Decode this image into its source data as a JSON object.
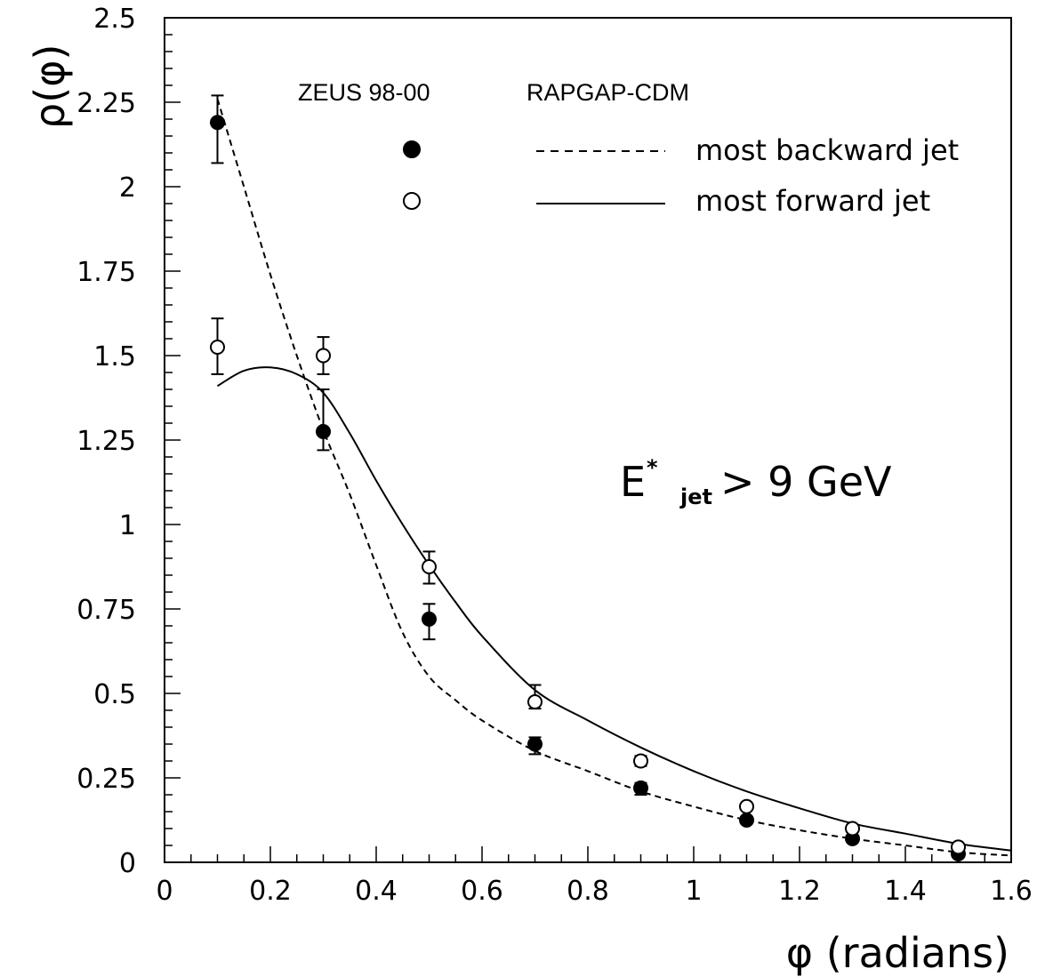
{
  "chart_data": {
    "type": "scatter",
    "title": "",
    "xlabel": "φ (radians)",
    "ylabel": "ρ(φ)",
    "xlim": [
      0,
      1.6
    ],
    "ylim": [
      0,
      2.5
    ],
    "xticks": [
      "0",
      "0.2",
      "0.4",
      "0.6",
      "0.8",
      "1",
      "1.2",
      "1.4",
      "1.6"
    ],
    "yticks": [
      "0",
      "0.25",
      "0.5",
      "0.75",
      "1",
      "1.25",
      "1.5",
      "1.75",
      "2",
      "2.25",
      "2.5"
    ],
    "grid": false,
    "legend": {
      "placement": "top-right",
      "header_data": "ZEUS 98-00",
      "header_model": "RAPGAP-CDM",
      "entries": [
        "most backward jet",
        "most forward jet"
      ]
    },
    "annotation": {
      "main": "E",
      "sup": "*",
      "sub": "jet",
      "rest": " > 9 GeV"
    },
    "series": [
      {
        "name": "most backward jet",
        "kind": "data",
        "marker": "filled-circle",
        "points": [
          {
            "x": 0.1,
            "y": 2.19,
            "ylo": 2.07,
            "yhi": 2.27
          },
          {
            "x": 0.3,
            "y": 1.275,
            "ylo": 1.22,
            "yhi": 1.4
          },
          {
            "x": 0.5,
            "y": 0.72,
            "ylo": 0.66,
            "yhi": 0.765
          },
          {
            "x": 0.7,
            "y": 0.35,
            "ylo": 0.32,
            "yhi": 0.37
          },
          {
            "x": 0.9,
            "y": 0.22,
            "ylo": 0.2,
            "yhi": 0.235
          },
          {
            "x": 1.1,
            "y": 0.125,
            "ylo": 0.115,
            "yhi": 0.135
          },
          {
            "x": 1.3,
            "y": 0.07,
            "ylo": 0.063,
            "yhi": 0.077
          },
          {
            "x": 1.5,
            "y": 0.025,
            "ylo": 0.02,
            "yhi": 0.03
          }
        ]
      },
      {
        "name": "most forward jet",
        "kind": "data",
        "marker": "open-circle",
        "points": [
          {
            "x": 0.1,
            "y": 1.525,
            "ylo": 1.445,
            "yhi": 1.61
          },
          {
            "x": 0.3,
            "y": 1.5,
            "ylo": 1.445,
            "yhi": 1.555
          },
          {
            "x": 0.5,
            "y": 0.875,
            "ylo": 0.825,
            "yhi": 0.92
          },
          {
            "x": 0.7,
            "y": 0.475,
            "ylo": 0.455,
            "yhi": 0.525
          },
          {
            "x": 0.9,
            "y": 0.3,
            "ylo": 0.285,
            "yhi": 0.315
          },
          {
            "x": 1.1,
            "y": 0.165,
            "ylo": 0.155,
            "yhi": 0.175
          },
          {
            "x": 1.3,
            "y": 0.1,
            "ylo": 0.095,
            "yhi": 0.105
          },
          {
            "x": 1.5,
            "y": 0.045,
            "ylo": 0.04,
            "yhi": 0.05
          }
        ]
      },
      {
        "name": "most backward jet",
        "kind": "model",
        "line_style": "dashed",
        "x": [
          0.1,
          0.15,
          0.2,
          0.25,
          0.3,
          0.35,
          0.4,
          0.45,
          0.5,
          0.55,
          0.6,
          0.7,
          0.8,
          0.9,
          1.0,
          1.1,
          1.2,
          1.3,
          1.4,
          1.5,
          1.6
        ],
        "y": [
          2.26,
          2.0,
          1.74,
          1.5,
          1.28,
          1.09,
          0.88,
          0.68,
          0.55,
          0.48,
          0.42,
          0.33,
          0.27,
          0.21,
          0.165,
          0.125,
          0.095,
          0.07,
          0.05,
          0.03,
          0.02
        ]
      },
      {
        "name": "most forward jet",
        "kind": "model",
        "line_style": "solid",
        "x": [
          0.1,
          0.15,
          0.2,
          0.25,
          0.3,
          0.35,
          0.4,
          0.45,
          0.5,
          0.55,
          0.6,
          0.7,
          0.8,
          0.9,
          1.0,
          1.1,
          1.2,
          1.3,
          1.4,
          1.5,
          1.6
        ],
        "y": [
          1.41,
          1.455,
          1.465,
          1.445,
          1.39,
          1.27,
          1.13,
          1.0,
          0.88,
          0.77,
          0.67,
          0.51,
          0.42,
          0.34,
          0.27,
          0.21,
          0.16,
          0.115,
          0.085,
          0.055,
          0.035
        ]
      }
    ]
  }
}
